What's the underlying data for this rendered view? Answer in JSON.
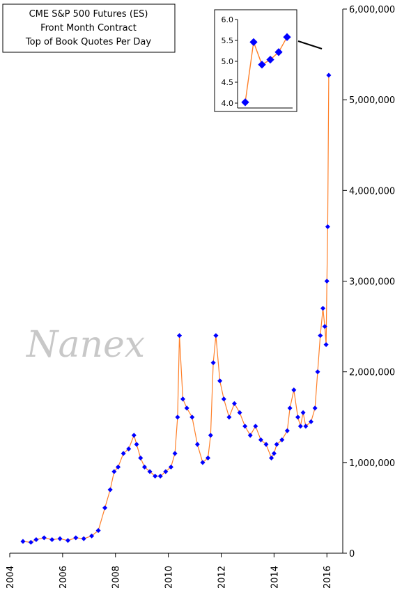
{
  "chart_data": {
    "type": "line",
    "title_lines": [
      "CME S&P 500 Futures (ES)",
      "Front Month Contract",
      "Top of Book Quotes Per Day"
    ],
    "watermark": "Nanex",
    "xlabel": "",
    "ylabel": "",
    "x_ticks": [
      "2004",
      "2006",
      "2008",
      "2010",
      "2012",
      "2014",
      "2016"
    ],
    "y_ticks": [
      "0",
      "1,000,000",
      "2,000,000",
      "3,000,000",
      "4,000,000",
      "5,000,000",
      "6,000,000"
    ],
    "xlim": [
      2004,
      2016.6
    ],
    "ylim": [
      0,
      6000000
    ],
    "grid": false,
    "line_color": "#ff7f27",
    "marker_color": "#0000ff",
    "series": [
      {
        "x": [
          2004.5,
          2004.8,
          2005.0,
          2005.3,
          2005.6,
          2005.9,
          2006.2,
          2006.5,
          2006.8,
          2007.1,
          2007.35,
          2007.6,
          2007.8,
          2007.95,
          2008.1,
          2008.3,
          2008.5,
          2008.7,
          2008.8,
          2008.95,
          2009.1,
          2009.3,
          2009.5,
          2009.7,
          2009.9,
          2010.1,
          2010.25,
          2010.35,
          2010.42,
          2010.55,
          2010.7,
          2010.9,
          2011.1,
          2011.3,
          2011.5,
          2011.6,
          2011.7,
          2011.8,
          2011.95,
          2012.1,
          2012.3,
          2012.5,
          2012.7,
          2012.9,
          2013.1,
          2013.3,
          2013.5,
          2013.7,
          2013.9,
          2014.0,
          2014.1,
          2014.3,
          2014.5,
          2014.6,
          2014.75,
          2014.9,
          2015.0,
          2015.1,
          2015.2,
          2015.4,
          2015.55,
          2015.65,
          2015.75,
          2015.85,
          2015.92,
          2015.97,
          2016.0,
          2016.03,
          2016.07
        ],
        "y": [
          130000,
          120000,
          150000,
          170000,
          150000,
          160000,
          140000,
          170000,
          160000,
          190000,
          250000,
          500000,
          700000,
          900000,
          950000,
          1100000,
          1150000,
          1300000,
          1200000,
          1050000,
          950000,
          900000,
          850000,
          850000,
          900000,
          950000,
          1100000,
          1500000,
          2400000,
          1700000,
          1600000,
          1500000,
          1200000,
          1000000,
          1050000,
          1300000,
          2100000,
          2400000,
          1900000,
          1700000,
          1500000,
          1650000,
          1550000,
          1400000,
          1300000,
          1400000,
          1250000,
          1200000,
          1050000,
          1100000,
          1200000,
          1250000,
          1350000,
          1600000,
          1800000,
          1500000,
          1400000,
          1550000,
          1400000,
          1450000,
          1600000,
          2000000,
          2400000,
          2700000,
          2500000,
          2300000,
          3000000,
          3600000,
          5270000
        ]
      }
    ],
    "inset": {
      "y_ticks": [
        "6.0",
        "5.5",
        "5.0",
        "4.5",
        "4.0"
      ],
      "ylim": [
        3.9,
        6.0
      ],
      "points": [
        4.02,
        5.46,
        4.92,
        5.04,
        5.22,
        5.58
      ]
    }
  }
}
